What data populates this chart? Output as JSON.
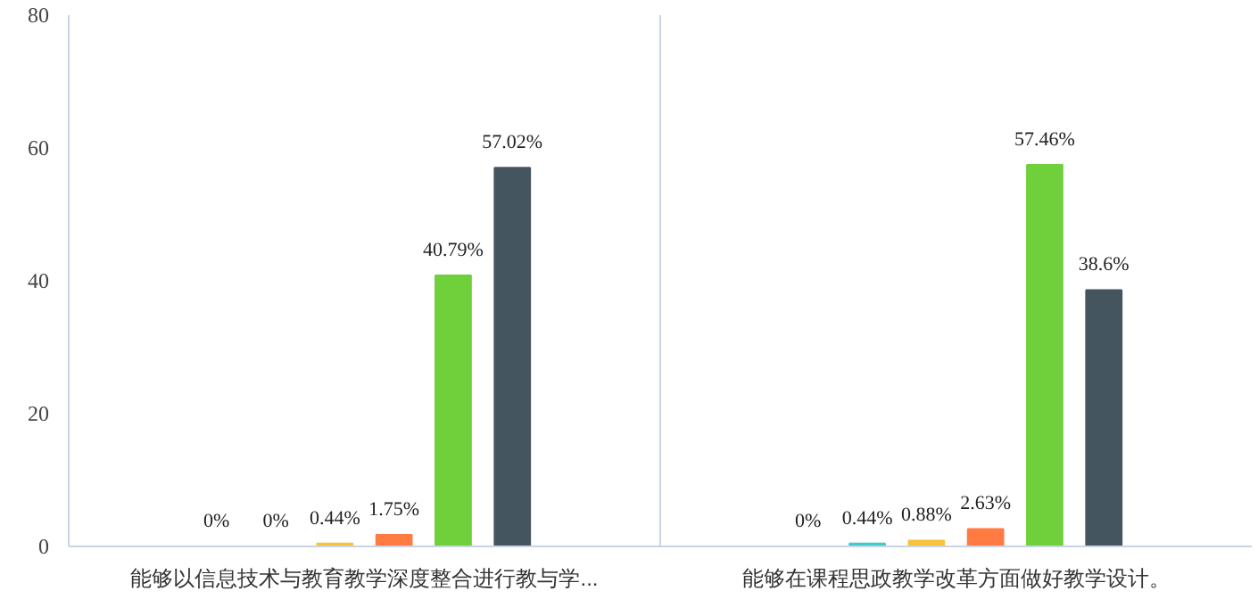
{
  "chart_data": {
    "type": "bar",
    "categories": [
      "能够以信息技术与教育教学深度整合进行教与学...",
      "能够在课程思政教学改革方面做好教学设计。"
    ],
    "series": [
      {
        "color": "#1e90ff",
        "values": [
          0,
          0
        ],
        "value_labels": [
          "0%",
          "0%"
        ]
      },
      {
        "color": "#3ccdc8",
        "values": [
          0,
          0.44
        ],
        "value_labels": [
          "0%",
          "0.44%"
        ]
      },
      {
        "color": "#f8c23c",
        "values": [
          0.44,
          0.88
        ],
        "value_labels": [
          "0.44%",
          "0.88%"
        ]
      },
      {
        "color": "#ff7b42",
        "values": [
          1.75,
          2.63
        ],
        "value_labels": [
          "1.75%",
          "2.63%"
        ]
      },
      {
        "color": "#6fd03c",
        "values": [
          40.79,
          57.46
        ],
        "value_labels": [
          "40.79%",
          "57.46%"
        ]
      },
      {
        "color": "#45555f",
        "values": [
          57.02,
          38.6
        ],
        "value_labels": [
          "57.02%",
          "38.6%"
        ]
      }
    ],
    "ylim": [
      0,
      80
    ],
    "yticks": [
      0,
      20,
      40,
      60,
      80
    ],
    "grid": false
  }
}
